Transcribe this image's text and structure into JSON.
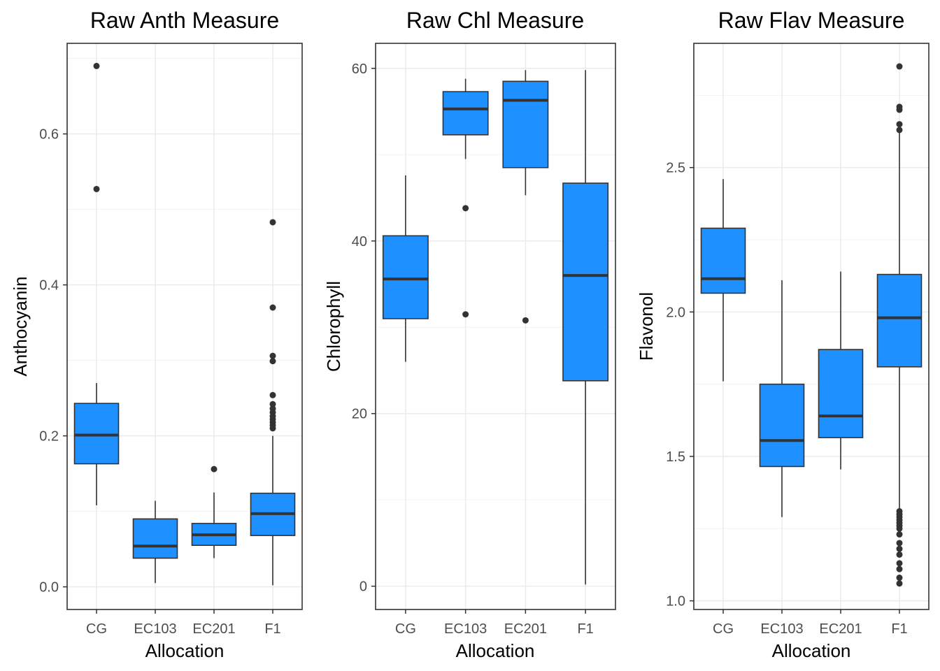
{
  "chart_data": [
    {
      "type": "box",
      "title": "Raw Anth Measure",
      "xlabel": "Allocation",
      "ylabel": "Anthocyanin",
      "categories": [
        "CG",
        "EC103",
        "EC201",
        "F1"
      ],
      "ylim": [
        -0.03,
        0.72
      ],
      "yticks": [
        0.0,
        0.2,
        0.4,
        0.6
      ],
      "ytick_labels": [
        "0.0",
        "0.2",
        "0.4",
        "0.6"
      ],
      "grid": true,
      "fill_color": "#1e90ff",
      "boxes": [
        {
          "category": "CG",
          "whisker_low": 0.108,
          "q1": 0.163,
          "median": 0.201,
          "q3": 0.243,
          "whisker_high": 0.27,
          "outliers": [
            0.527,
            0.69
          ]
        },
        {
          "category": "EC103",
          "whisker_low": 0.005,
          "q1": 0.038,
          "median": 0.054,
          "q3": 0.09,
          "whisker_high": 0.114,
          "outliers": []
        },
        {
          "category": "EC201",
          "whisker_low": 0.038,
          "q1": 0.055,
          "median": 0.069,
          "q3": 0.084,
          "whisker_high": 0.125,
          "outliers": [
            0.156
          ]
        },
        {
          "category": "F1",
          "whisker_low": 0.002,
          "q1": 0.068,
          "median": 0.097,
          "q3": 0.124,
          "whisker_high": 0.2,
          "outliers": [
            0.21,
            0.214,
            0.218,
            0.222,
            0.226,
            0.231,
            0.236,
            0.242,
            0.254,
            0.299,
            0.306,
            0.37,
            0.483
          ]
        }
      ]
    },
    {
      "type": "box",
      "title": "Raw Chl Measure",
      "xlabel": "Allocation",
      "ylabel": "Chlorophyll",
      "categories": [
        "CG",
        "EC103",
        "EC201",
        "F1"
      ],
      "ylim": [
        -2.7,
        62.9
      ],
      "yticks": [
        0,
        20,
        40,
        60
      ],
      "ytick_labels": [
        "0",
        "20",
        "40",
        "60"
      ],
      "grid": true,
      "fill_color": "#1e90ff",
      "boxes": [
        {
          "category": "CG",
          "whisker_low": 26.0,
          "q1": 31.0,
          "median": 35.6,
          "q3": 40.6,
          "whisker_high": 47.6,
          "outliers": []
        },
        {
          "category": "EC103",
          "whisker_low": 49.5,
          "q1": 52.3,
          "median": 55.3,
          "q3": 57.3,
          "whisker_high": 58.8,
          "outliers": [
            31.5,
            43.8
          ]
        },
        {
          "category": "EC201",
          "whisker_low": 45.3,
          "q1": 48.5,
          "median": 56.3,
          "q3": 58.5,
          "whisker_high": 59.8,
          "outliers": [
            30.8
          ]
        },
        {
          "category": "F1",
          "whisker_low": 0.2,
          "q1": 23.8,
          "median": 36.0,
          "q3": 46.7,
          "whisker_high": 59.8,
          "outliers": []
        }
      ]
    },
    {
      "type": "box",
      "title": "Raw Flav Measure",
      "xlabel": "Allocation",
      "ylabel": "Flavonol",
      "categories": [
        "CG",
        "EC103",
        "EC201",
        "F1"
      ],
      "ylim": [
        0.97,
        2.93
      ],
      "yticks": [
        1.0,
        1.5,
        2.0,
        2.5
      ],
      "ytick_labels": [
        "1.0",
        "1.5",
        "2.0",
        "2.5"
      ],
      "grid": true,
      "fill_color": "#1e90ff",
      "boxes": [
        {
          "category": "CG",
          "whisker_low": 1.76,
          "q1": 2.065,
          "median": 2.115,
          "q3": 2.29,
          "whisker_high": 2.46,
          "outliers": []
        },
        {
          "category": "EC103",
          "whisker_low": 1.29,
          "q1": 1.465,
          "median": 1.555,
          "q3": 1.75,
          "whisker_high": 2.11,
          "outliers": []
        },
        {
          "category": "EC201",
          "whisker_low": 1.455,
          "q1": 1.565,
          "median": 1.64,
          "q3": 1.87,
          "whisker_high": 2.14,
          "outliers": []
        },
        {
          "category": "F1",
          "whisker_low": 1.32,
          "q1": 1.81,
          "median": 1.98,
          "q3": 2.13,
          "whisker_high": 2.62,
          "outliers": [
            1.06,
            1.08,
            1.11,
            1.13,
            1.16,
            1.18,
            1.2,
            1.23,
            1.25,
            1.26,
            1.27,
            1.28,
            1.29,
            1.3,
            1.31,
            2.63,
            2.65,
            2.7,
            2.71,
            2.85
          ]
        }
      ]
    }
  ]
}
